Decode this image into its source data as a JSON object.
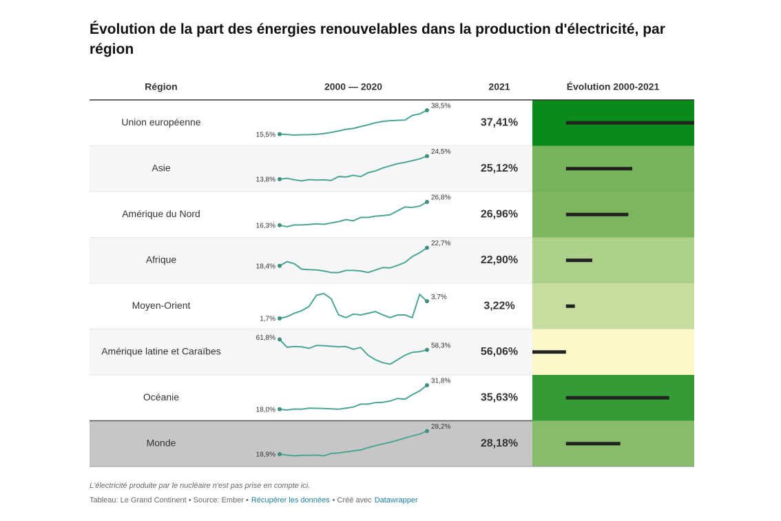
{
  "title": "Évolution de la part des énergies renouvelables dans la production d'électricité, par région",
  "table": {
    "columns": [
      "Région",
      "2000 — 2020",
      "2021",
      "Évolution 2000-2021"
    ],
    "rows": [
      {
        "region": "Union européenne",
        "trend": [
          15.5,
          15.2,
          14.6,
          14.9,
          15.0,
          15.3,
          16.0,
          17.2,
          18.6,
          20.2,
          21.0,
          22.8,
          24.5,
          26.5,
          27.8,
          28.5,
          28.8,
          29.0,
          33.5,
          35.0,
          38.5
        ],
        "trend_start_label": "15,5%",
        "trend_end_label": "38,5%",
        "value": 37.41,
        "value_label": "37,41%",
        "change": 21.91
      },
      {
        "region": "Asie",
        "trend": [
          13.8,
          14.2,
          13.5,
          13.0,
          13.6,
          13.4,
          13.5,
          13.2,
          15.0,
          14.8,
          15.6,
          15.0,
          16.8,
          17.6,
          19.0,
          20.0,
          21.0,
          21.6,
          22.4,
          23.2,
          24.5
        ],
        "trend_start_label": "13,8%",
        "trend_end_label": "24,5%",
        "value": 25.12,
        "value_label": "25,12%",
        "change": 11.32
      },
      {
        "region": "Amérique du Nord",
        "trend": [
          16.3,
          15.6,
          16.4,
          16.4,
          16.6,
          16.9,
          16.7,
          17.3,
          17.9,
          18.8,
          18.3,
          19.8,
          19.8,
          20.4,
          20.6,
          21.0,
          22.8,
          24.5,
          24.3,
          24.9,
          26.8
        ],
        "trend_start_label": "16,3%",
        "trend_end_label": "26,8%",
        "value": 26.96,
        "value_label": "26,96%",
        "change": 10.66
      },
      {
        "region": "Afrique",
        "trend": [
          18.4,
          19.4,
          18.9,
          17.6,
          17.5,
          17.4,
          17.2,
          16.8,
          16.8,
          17.3,
          17.3,
          17.2,
          16.8,
          17.4,
          18.0,
          17.9,
          18.5,
          19.2,
          20.6,
          21.5,
          22.7
        ],
        "trend_start_label": "18,4%",
        "trend_end_label": "22,7%",
        "value": 22.9,
        "value_label": "22,90%",
        "change": 4.5
      },
      {
        "region": "Moyen-Orient",
        "trend": [
          1.7,
          1.9,
          2.3,
          2.6,
          3.1,
          4.4,
          4.6,
          4.0,
          2.1,
          1.8,
          2.2,
          2.1,
          2.3,
          2.5,
          2.1,
          1.8,
          2.1,
          2.1,
          1.8,
          4.5,
          3.7
        ],
        "trend_start_label": "1,7%",
        "trend_end_label": "3,7%",
        "value": 3.22,
        "value_label": "3,22%",
        "change": 1.52
      },
      {
        "region": "Amérique latine et Caraïbes",
        "trend": [
          61.8,
          59.2,
          59.4,
          59.3,
          58.8,
          59.8,
          59.7,
          59.5,
          59.3,
          59.4,
          58.5,
          59.1,
          56.5,
          55.0,
          54.0,
          53.5,
          55.0,
          56.5,
          57.5,
          57.7,
          58.3
        ],
        "trend_start_label": "61,8%",
        "trend_end_label": "58,3%",
        "value": 56.06,
        "value_label": "56,06%",
        "change": -5.74
      },
      {
        "region": "Océanie",
        "trend": [
          18.0,
          17.5,
          18.1,
          18.0,
          18.6,
          18.5,
          18.4,
          18.2,
          18.0,
          18.6,
          19.2,
          20.9,
          20.9,
          21.8,
          22.0,
          22.7,
          24.2,
          23.7,
          26.3,
          28.5,
          31.8
        ],
        "trend_start_label": "18,0%",
        "trend_end_label": "31,8%",
        "value": 35.63,
        "value_label": "35,63%",
        "change": 17.63
      },
      {
        "region": "Monde",
        "trend": [
          18.9,
          18.5,
          18.2,
          18.4,
          18.4,
          18.5,
          18.2,
          19.2,
          19.4,
          19.8,
          20.2,
          20.6,
          21.5,
          22.3,
          23.0,
          23.7,
          24.5,
          25.4,
          26.2,
          27.0,
          28.2
        ],
        "trend_start_label": "18,9%",
        "trend_end_label": "28,2%",
        "value": 28.18,
        "value_label": "28,18%",
        "change": 9.28
      }
    ]
  },
  "footer": {
    "note": "L'électricité produite par le nucléaire n'est pas prise en compte ici.",
    "source": "Tableau: Le Grand Continent • Source: Ember •",
    "download": "Récupérer les données",
    "created": "• Créé avec",
    "tool": "Datawrapper"
  }
}
